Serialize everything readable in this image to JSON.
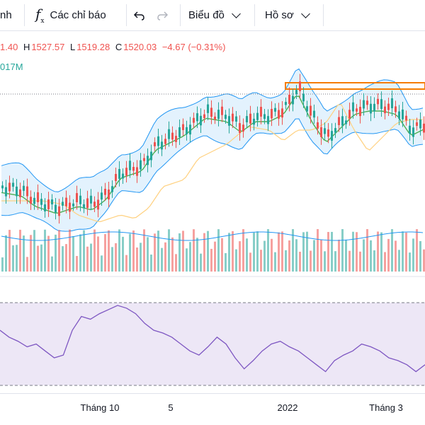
{
  "toolbar": {
    "partial_label": "nh",
    "indicators_label": "Các chỉ báo",
    "chart_label": "Biểu đồ",
    "profile_label": "Hồ sơ",
    "undo_icon": "undo-icon",
    "redo_icon": "redo-icon",
    "fx_icon": "indicators-icon"
  },
  "legend": {
    "open_partial": "1.40",
    "high_label": "H",
    "high_value": "1527.57",
    "low_label": "L",
    "low_value": "1519.28",
    "close_label": "C",
    "close_value": "1520.03",
    "change": "−4.67 (−0.31%)"
  },
  "volume_legend": {
    "value_partial": "017M"
  },
  "xaxis": {
    "labels": [
      "Tháng 10",
      "5",
      "2022",
      "Tháng 3"
    ]
  },
  "colors": {
    "up": "#26a69a",
    "down": "#ef5350",
    "bollinger": "#2196f3",
    "bollinger_fill": "#e3f2fd",
    "ma": "#4caf50",
    "ma_slow": "#ffd180",
    "rsi": "#7e57c2",
    "rsi_band": "#ede7f6",
    "highlight": "#f57c00"
  },
  "chart_data": {
    "type": "line",
    "series": [
      {
        "values": [
          60,
          55,
          52,
          48,
          50,
          45,
          40,
          42,
          60,
          70,
          68,
          72,
          75,
          78,
          76,
          72,
          65,
          60,
          58,
          55,
          50,
          45,
          42,
          48,
          55,
          50,
          40,
          32,
          38,
          45,
          50,
          52,
          48,
          45,
          40,
          35,
          30,
          38,
          42,
          45,
          50,
          48,
          45,
          40,
          38,
          35,
          30,
          35
        ]
      }
    ]
  }
}
